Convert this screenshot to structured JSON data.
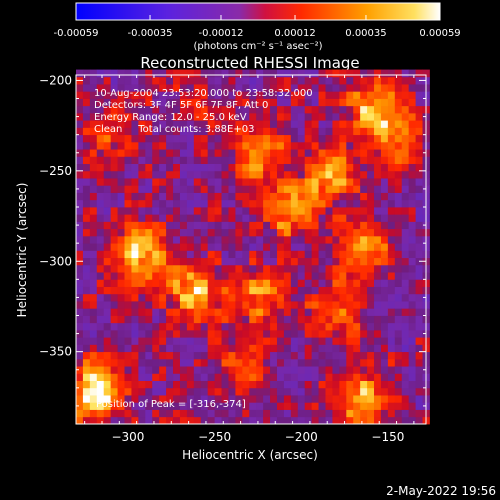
{
  "colorbar": {
    "ticks": [
      "-0.00059",
      "-0.00035",
      "-0.00012",
      "0.00012",
      "0.00035",
      "0.00059"
    ],
    "units_label": "(photons cm⁻² s⁻¹ asec⁻²)",
    "colors": [
      "#0000ff",
      "#6a1fd0",
      "#a0209a",
      "#ff2a00",
      "#ffa000",
      "#ffffff"
    ]
  },
  "chart_data": {
    "type": "heatmap",
    "title": "Reconstructed RHESSI Image",
    "xlabel": "Heliocentric X (arcsec)",
    "ylabel": "Heliocentric Y (arcsec)",
    "xlim": [
      -330,
      -128
    ],
    "ylim": [
      -390,
      -197
    ],
    "x_ticks": [
      -300,
      -250,
      -200,
      -150
    ],
    "x_tick_labels": [
      "−300",
      "−250",
      "−200",
      "−150"
    ],
    "y_ticks": [
      -200,
      -250,
      -300,
      -350
    ],
    "y_tick_labels": [
      "−200",
      "−250",
      "−300",
      "−350"
    ],
    "value_range": [
      -0.00059,
      0.00059
    ],
    "info_lines": [
      "10-Aug-2004 23:53:20.000 to 23:58:32.000",
      "Detectors: 3F 4F 5F 6F 7F 8F, Att 0",
      "Energy Range: 12.0 - 25.0 keV",
      "Clean     Total counts: 3.88E+03"
    ],
    "peak_text": "Position of Peak = [-316,-374]",
    "bright_sources": [
      {
        "x": -292,
        "y": -295,
        "value": 0.00052
      },
      {
        "x": -318,
        "y": -372,
        "value": 0.00059
      },
      {
        "x": -262,
        "y": -317,
        "value": 0.00045
      },
      {
        "x": -206,
        "y": -270,
        "value": 0.00046
      },
      {
        "x": -225,
        "y": -240,
        "value": 0.00042
      },
      {
        "x": -180,
        "y": -252,
        "value": 0.00038
      },
      {
        "x": -160,
        "y": -215,
        "value": 0.00042
      },
      {
        "x": -145,
        "y": -232,
        "value": 0.00036
      },
      {
        "x": -165,
        "y": -295,
        "value": 0.00038
      },
      {
        "x": -180,
        "y": -330,
        "value": 0.0003
      },
      {
        "x": -225,
        "y": -320,
        "value": 0.00036
      },
      {
        "x": -235,
        "y": -360,
        "value": 0.00022
      },
      {
        "x": -165,
        "y": -375,
        "value": 0.00046
      },
      {
        "x": -310,
        "y": -230,
        "value": 0.0002
      },
      {
        "x": -260,
        "y": -210,
        "value": 0.00015
      }
    ]
  },
  "footer": {
    "timestamp": "2-May-2022 19:56"
  }
}
